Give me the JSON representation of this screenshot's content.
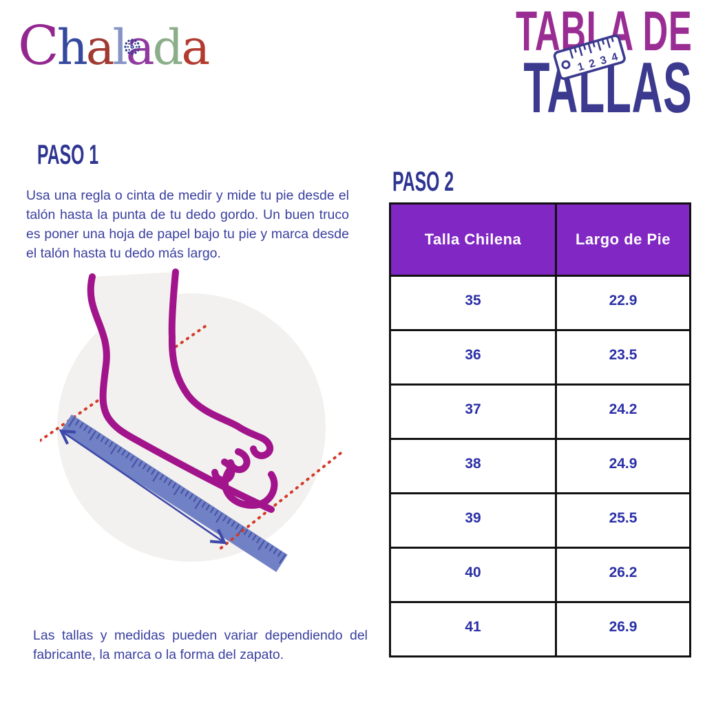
{
  "brand": {
    "name": "Chalada",
    "letters": [
      {
        "char": "C",
        "color": "#93278F"
      },
      {
        "char": "h",
        "color": "#35499E"
      },
      {
        "char": "a",
        "color": "#A03A32"
      },
      {
        "char": "l",
        "color": "#8593C6"
      },
      {
        "char": "a",
        "color": "#8E3A9E"
      },
      {
        "char": "d",
        "color": "#8BAE89"
      },
      {
        "char": "a",
        "color": "#B23A2E"
      }
    ]
  },
  "title": {
    "line1": "TABLA DE",
    "line2": "TALLAS",
    "ruler_digits": [
      "1",
      "2",
      "3",
      "4"
    ]
  },
  "step1": {
    "heading": "PASO 1",
    "body": "Usa una regla o cinta de medir y mide tu pie desde el talón hasta la punta de tu dedo gordo. Un buen truco es poner una hoja de papel bajo tu pie y marca desde el talón hasta tu dedo más largo."
  },
  "step2": {
    "heading": "PASO 2"
  },
  "table": {
    "headers": [
      "Talla Chilena",
      "Largo de Pie"
    ],
    "rows": [
      [
        "35",
        "22.9"
      ],
      [
        "36",
        "23.5"
      ],
      [
        "37",
        "24.2"
      ],
      [
        "38",
        "24.9"
      ],
      [
        "39",
        "25.5"
      ],
      [
        "40",
        "26.2"
      ],
      [
        "41",
        "26.9"
      ]
    ]
  },
  "footnote": "Las tallas y medidas pueden variar dependiendo del fabricante, la marca o la forma del zapato.",
  "icons": {
    "title_ruler": "ruler-icon",
    "logo_mandala": "mandala-icon",
    "illustration": "foot-measurement-illustration"
  },
  "colors": {
    "title_magenta": "#9A2D93",
    "title_indigo": "#3B3A8F",
    "heading_blue": "#2E3591",
    "body_text": "#3A3F9F",
    "table_header_bg": "#8128C4",
    "table_header_text": "#FFFFFF",
    "table_cell_text": "#2B2FA6",
    "table_border": "#111111",
    "foot_stroke": "#A1148C",
    "ruler_fill": "#7181C5",
    "ruler_tick": "#454FA3",
    "dotted_red": "#D23B28",
    "arrow_blue": "#3D48A8",
    "circle_bg": "#F3F1EF"
  },
  "chart_data": {
    "type": "table",
    "title": "Tabla de Tallas",
    "columns": [
      "Talla Chilena",
      "Largo de Pie"
    ],
    "rows": [
      [
        35,
        22.9
      ],
      [
        36,
        23.5
      ],
      [
        37,
        24.2
      ],
      [
        38,
        24.9
      ],
      [
        39,
        25.5
      ],
      [
        40,
        26.2
      ],
      [
        41,
        26.9
      ]
    ]
  }
}
